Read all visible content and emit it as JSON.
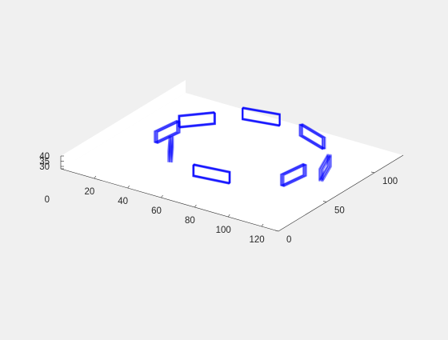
{
  "chart_data": {
    "type": "3d-wireframe",
    "title": "",
    "xlabel": "",
    "ylabel": "",
    "zlabel": "",
    "grid": false,
    "legend": false,
    "background_color": "#f0f0f0",
    "axes_color": "#ffffff",
    "line_color": "#0000ff",
    "xlim": [
      0,
      130
    ],
    "ylim": [
      0,
      130
    ],
    "zlim": [
      0,
      40
    ],
    "x_ticks": [
      "20",
      "40",
      "60",
      "80",
      "100",
      "120"
    ],
    "x_tick_values": [
      20,
      40,
      60,
      80,
      100,
      120
    ],
    "y_ticks": [
      "0",
      "50",
      "100"
    ],
    "y_tick_values": [
      0,
      50,
      100
    ],
    "z_ticks": [
      "0",
      "30",
      "35",
      "40"
    ],
    "z_tick_values": [
      0,
      30,
      35,
      40
    ],
    "series": [
      {
        "values": [
          [
            37,
            50,
            30
          ],
          [
            70,
            35,
            30
          ],
          [
            104,
            61,
            30
          ],
          [
            112,
            80,
            30
          ],
          [
            86,
            112,
            30
          ],
          [
            52,
            118,
            30
          ],
          [
            28,
            93,
            30
          ],
          [
            24,
            69,
            30
          ]
        ]
      }
    ]
  }
}
